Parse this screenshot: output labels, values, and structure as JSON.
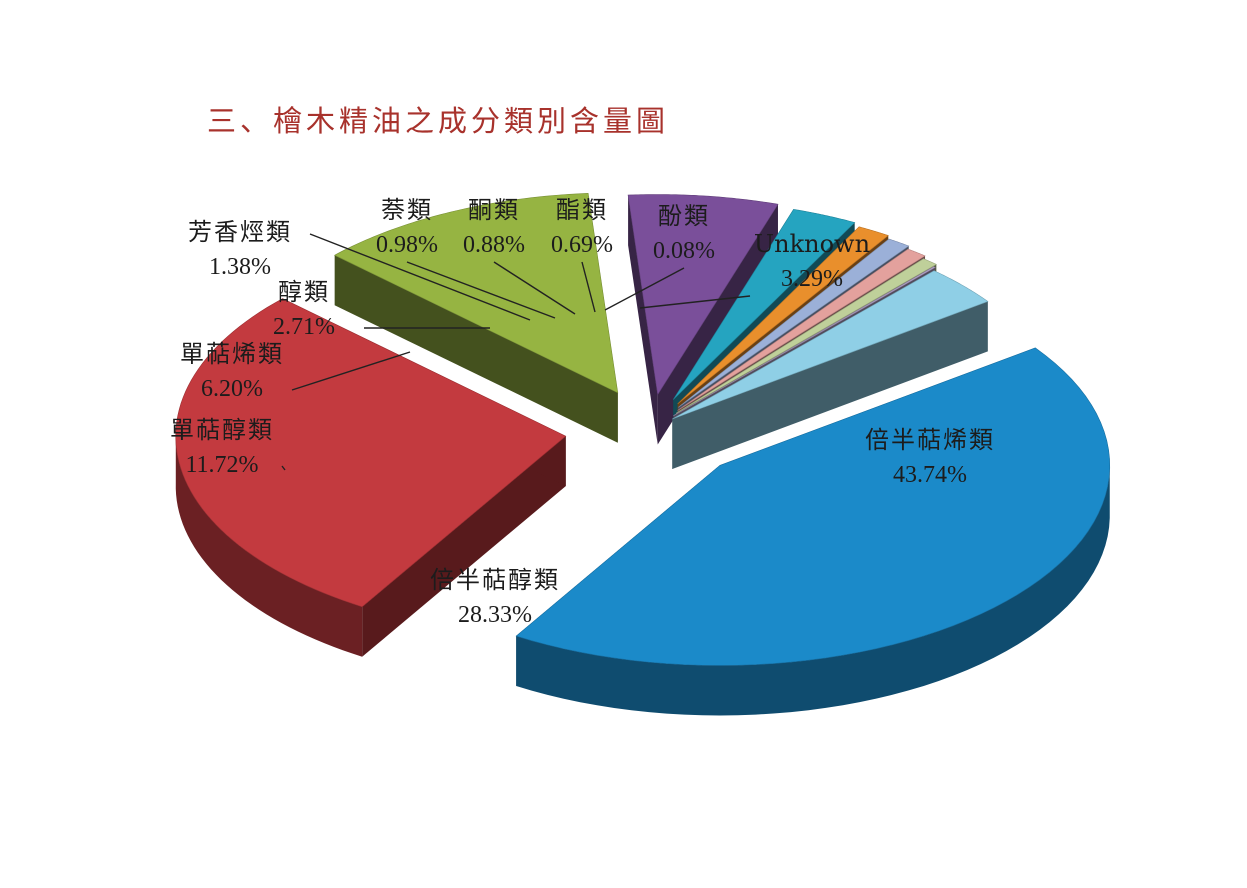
{
  "chart_data": {
    "type": "pie",
    "title": "三、檜木精油之成分類別含量圖",
    "slices": [
      {
        "label": "倍半萜烯類",
        "value": 43.74,
        "value_label": "43.74%",
        "color": "#1b8ac9"
      },
      {
        "label": "倍半萜醇類",
        "value": 28.33,
        "value_label": "28.33%",
        "color": "#c33a3f"
      },
      {
        "label": "單萜醇類",
        "value": 11.72,
        "value_label": "11.72%",
        "color": "#96b442"
      },
      {
        "label": "單萜烯類",
        "value": 6.2,
        "value_label": "6.20%",
        "color": "#7a4f9a"
      },
      {
        "label": "醇類",
        "value": 2.71,
        "value_label": "2.71%",
        "color": "#25a4c0"
      },
      {
        "label": "芳香烴類",
        "value": 1.38,
        "value_label": "1.38%",
        "color": "#e98f2c"
      },
      {
        "label": "萘類",
        "value": 0.98,
        "value_label": "0.98%",
        "color": "#9bb0d8"
      },
      {
        "label": "酮類",
        "value": 0.88,
        "value_label": "0.88%",
        "color": "#e3a19d"
      },
      {
        "label": "酯類",
        "value": 0.69,
        "value_label": "0.69%",
        "color": "#bfd09a"
      },
      {
        "label": "酚類",
        "value": 0.08,
        "value_label": "0.08%",
        "color": "#b7a6cc"
      },
      {
        "label": "Unknown",
        "value": 3.29,
        "value_label": "3.29%",
        "color": "#8fcfe6"
      }
    ]
  }
}
